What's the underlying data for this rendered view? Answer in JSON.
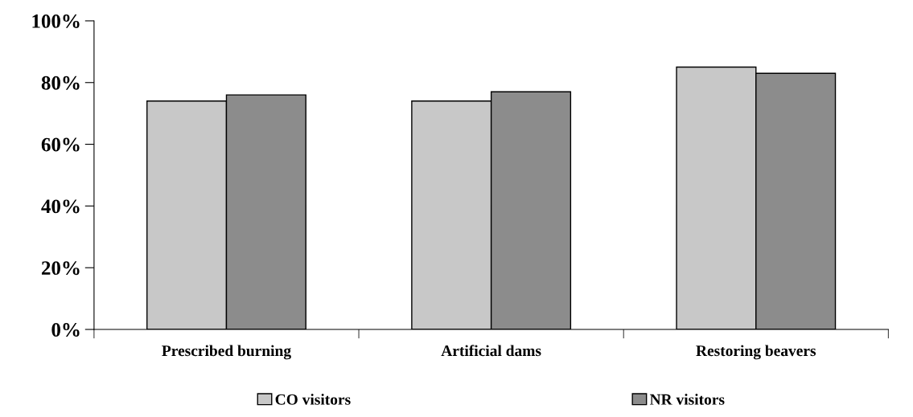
{
  "chart_data": {
    "type": "bar",
    "categories": [
      "Prescribed burning",
      "Artificial dams",
      "Restoring beavers"
    ],
    "series": [
      {
        "name": "CO visitors",
        "color": "#c8c8c8",
        "values": [
          74,
          74,
          85
        ]
      },
      {
        "name": "NR visitors",
        "color": "#8c8c8c",
        "values": [
          76,
          77,
          83
        ]
      }
    ],
    "ylim": [
      0,
      100
    ],
    "yticks": [
      {
        "value": 0,
        "label": "0%"
      },
      {
        "value": 20,
        "label": "20%"
      },
      {
        "value": 40,
        "label": "40%"
      },
      {
        "value": 60,
        "label": "60%"
      },
      {
        "value": 80,
        "label": "80%"
      },
      {
        "value": 100,
        "label": "100%"
      }
    ],
    "grid": false,
    "legend": "bottom"
  }
}
